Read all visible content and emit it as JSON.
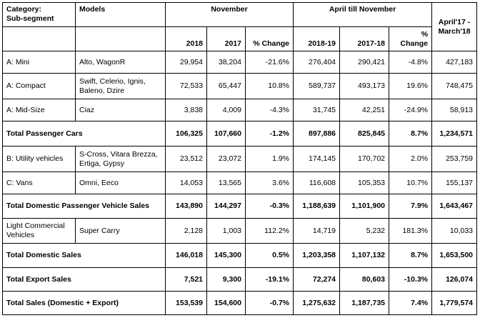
{
  "header": {
    "category": "Category:",
    "subsegment": "Sub-segment",
    "models": "Models",
    "november": "November",
    "april_till_november": "April till November",
    "ytd": "April'17 - March'18",
    "year_2018": "2018",
    "year_2017": "2017",
    "pct_change": "% Change",
    "fy_2018_19": "2018-19",
    "fy_2017_18": "2017-18",
    "pct_change_2": "% Change"
  },
  "rows": [
    {
      "category": "A: Mini",
      "models": "Alto, WagonR",
      "nov_2018": "29,954",
      "nov_2017": "38,204",
      "nov_change": "-21.6%",
      "apr_2018_19": "276,404",
      "apr_2017_18": "290,421",
      "apr_change": "-4.8%",
      "fy": "427,183"
    },
    {
      "category": "A: Compact",
      "models": "Swift, Celerio, Ignis, Baleno, Dzire",
      "nov_2018": "72,533",
      "nov_2017": "65,447",
      "nov_change": "10.8%",
      "apr_2018_19": "589,737",
      "apr_2017_18": "493,173",
      "apr_change": "19.6%",
      "fy": "748,475"
    },
    {
      "category": "A: Mid-Size",
      "models": "Ciaz",
      "nov_2018": "3,838",
      "nov_2017": "4,009",
      "nov_change": "-4.3%",
      "apr_2018_19": "31,745",
      "apr_2017_18": "42,251",
      "apr_change": "-24.9%",
      "fy": "58,913"
    },
    {
      "category": "Total Passenger Cars",
      "models": "",
      "nov_2018": "106,325",
      "nov_2017": "107,660",
      "nov_change": "-1.2%",
      "apr_2018_19": "897,886",
      "apr_2017_18": "825,845",
      "apr_change": "8.7%",
      "fy": "1,234,571"
    },
    {
      "category": "B: Utility vehicles",
      "models": "S-Cross, Vitara Brezza, Ertiga, Gypsy",
      "nov_2018": "23,512",
      "nov_2017": "23,072",
      "nov_change": "1.9%",
      "apr_2018_19": "174,145",
      "apr_2017_18": "170,702",
      "apr_change": "2.0%",
      "fy": "253,759"
    },
    {
      "category": "C: Vans",
      "models": "Omni, Eeco",
      "nov_2018": "14,053",
      "nov_2017": "13,565",
      "nov_change": "3.6%",
      "apr_2018_19": "116,608",
      "apr_2017_18": "105,353",
      "apr_change": "10.7%",
      "fy": "155,137"
    },
    {
      "category": "Total Domestic Passenger Vehicle Sales",
      "models": "",
      "nov_2018": "143,890",
      "nov_2017": "144,297",
      "nov_change": "-0.3%",
      "apr_2018_19": "1,188,639",
      "apr_2017_18": "1,101,900",
      "apr_change": "7.9%",
      "fy": "1,643,467"
    },
    {
      "category": "Light Commercial Vehicles",
      "models": "Super Carry",
      "nov_2018": "2,128",
      "nov_2017": "1,003",
      "nov_change": "112.2%",
      "apr_2018_19": "14,719",
      "apr_2017_18": "5,232",
      "apr_change": "181.3%",
      "fy": "10,033"
    },
    {
      "category": "Total Domestic Sales",
      "models": "",
      "nov_2018": "146,018",
      "nov_2017": "145,300",
      "nov_change": "0.5%",
      "apr_2018_19": "1,203,358",
      "apr_2017_18": "1,107,132",
      "apr_change": "8.7%",
      "fy": "1,653,500"
    },
    {
      "category": "Total Export Sales",
      "models": "",
      "nov_2018": "7,521",
      "nov_2017": "9,300",
      "nov_change": "-19.1%",
      "apr_2018_19": "72,274",
      "apr_2017_18": "80,603",
      "apr_change": "-10.3%",
      "fy": "126,074"
    },
    {
      "category": "Total Sales (Domestic + Export)",
      "models": "",
      "nov_2018": "153,539",
      "nov_2017": "154,600",
      "nov_change": "-0.7%",
      "apr_2018_19": "1,275,632",
      "apr_2017_18": "1,187,735",
      "apr_change": "7.4%",
      "fy": "1,779,574"
    }
  ]
}
